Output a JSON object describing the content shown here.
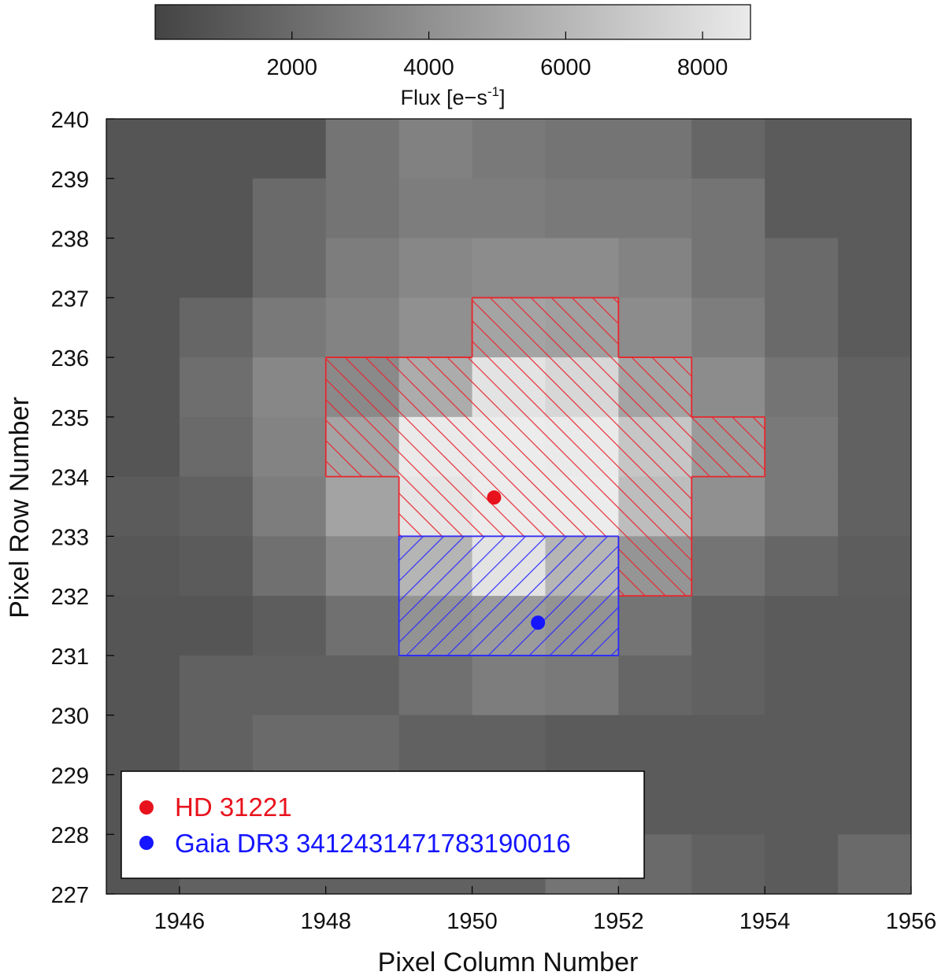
{
  "chart_data": {
    "type": "heatmap",
    "title": "",
    "xlabel": "Pixel Column Number",
    "ylabel": "Pixel Row Number",
    "xlim": [
      1945,
      1956
    ],
    "ylim": [
      227,
      240
    ],
    "xticks": [
      "1946",
      "1948",
      "1950",
      "1952",
      "1954",
      "1956"
    ],
    "yticks": [
      "227",
      "228",
      "229",
      "230",
      "231",
      "232",
      "233",
      "234",
      "235",
      "236",
      "237",
      "238",
      "239",
      "240"
    ],
    "grid": false,
    "colormap": "greys (dark = low, light = high)",
    "colorbar": {
      "label_main": "Flux [e",
      "label_dash": "−",
      "label_s": "s",
      "label_exp": "-1",
      "label_close": "]",
      "range": [
        1,
        8700
      ],
      "ticks": [
        "2000",
        "4000",
        "6000",
        "8000"
      ],
      "tick_values": [
        2000,
        4000,
        6000,
        8000
      ],
      "position": "top"
    },
    "column_origin": 1945,
    "row_origin": 227,
    "flux_grid_top_to_bottom": [
      [
        900,
        900,
        900,
        2500,
        3200,
        2800,
        2500,
        2500,
        1800,
        1200,
        1200
      ],
      [
        900,
        900,
        2000,
        2500,
        3000,
        3000,
        2800,
        2800,
        2500,
        1200,
        1200
      ],
      [
        900,
        900,
        2000,
        3000,
        3500,
        3800,
        3800,
        3300,
        2500,
        2000,
        1200
      ],
      [
        900,
        1800,
        2800,
        3300,
        4000,
        4500,
        4300,
        3800,
        3000,
        2000,
        1200
      ],
      [
        900,
        2200,
        3500,
        3000,
        5000,
        8200,
        7500,
        4500,
        3800,
        2500,
        1500
      ],
      [
        900,
        2000,
        3300,
        4500,
        8600,
        8700,
        8600,
        6500,
        4000,
        2800,
        1500
      ],
      [
        1200,
        1500,
        3000,
        5000,
        8300,
        8700,
        8700,
        6000,
        4000,
        2800,
        1500
      ],
      [
        1000,
        1200,
        2300,
        3600,
        5500,
        8200,
        5500,
        3600,
        2500,
        1800,
        1300
      ],
      [
        900,
        900,
        1300,
        2300,
        3500,
        4000,
        3500,
        2500,
        1500,
        1200,
        1200
      ],
      [
        900,
        1500,
        1500,
        1500,
        2300,
        3000,
        2800,
        1800,
        1500,
        1200,
        1200
      ],
      [
        900,
        1500,
        2000,
        2000,
        1500,
        1500,
        1200,
        1200,
        1200,
        1200,
        1200
      ],
      [
        900,
        1500,
        1500,
        1500,
        1200,
        1200,
        1200,
        1200,
        1200,
        1200,
        1200
      ],
      [
        900,
        1500,
        1500,
        1500,
        1500,
        1500,
        2500,
        2000,
        1500,
        1200,
        2000
      ]
    ],
    "apertures": [
      {
        "name": "HD 31221",
        "color": "#e8262d",
        "pixels": [
          [
            1950,
            236
          ],
          [
            1951,
            236
          ],
          [
            1948,
            235
          ],
          [
            1949,
            235
          ],
          [
            1950,
            235
          ],
          [
            1951,
            235
          ],
          [
            1952,
            235
          ],
          [
            1948,
            234
          ],
          [
            1949,
            234
          ],
          [
            1950,
            234
          ],
          [
            1951,
            234
          ],
          [
            1952,
            234
          ],
          [
            1953,
            234
          ],
          [
            1949,
            233
          ],
          [
            1950,
            233
          ],
          [
            1951,
            233
          ],
          [
            1952,
            233
          ],
          [
            1952,
            232
          ]
        ],
        "hatch": "backslash"
      },
      {
        "name": "Gaia DR3 3412431471783190016",
        "color": "#2b2bff",
        "pixels": [
          [
            1949,
            232
          ],
          [
            1950,
            232
          ],
          [
            1951,
            232
          ],
          [
            1949,
            231
          ],
          [
            1950,
            231
          ],
          [
            1951,
            231
          ]
        ],
        "hatch": "slash"
      }
    ],
    "series": [
      {
        "name": "HD 31221",
        "color": "#e8121c",
        "x": [
          1950.3
        ],
        "y": [
          233.65
        ]
      },
      {
        "name": "Gaia DR3 3412431471783190016",
        "color": "#1515ff",
        "x": [
          1950.9
        ],
        "y": [
          231.55
        ]
      }
    ],
    "legend": {
      "placement": "bottom-left",
      "entries": [
        "HD 31221",
        "Gaia DR3 3412431471783190016"
      ]
    }
  }
}
